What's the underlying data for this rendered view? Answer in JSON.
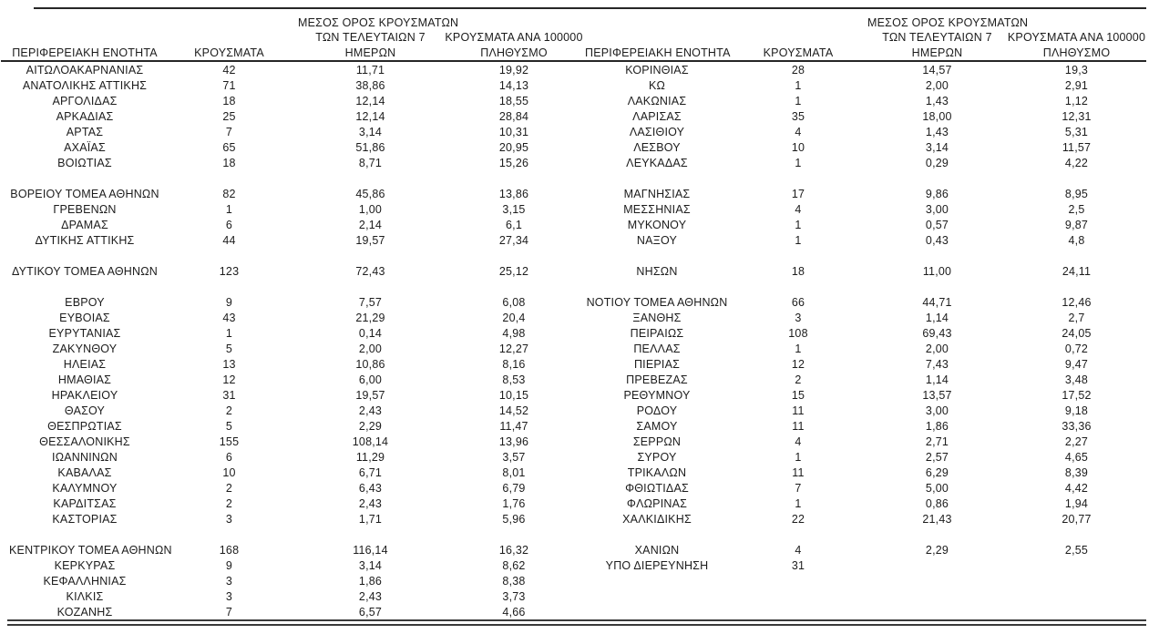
{
  "table": {
    "header_lines": {
      "region": [
        "ΠΕΡΙΦΕΡΕΙΑΚΗ ΕΝΟΤΗΤΑ"
      ],
      "cases": [
        "ΚΡΟΥΣΜΑΤΑ"
      ],
      "avg7": [
        "ΜΕΣΟΣ ΟΡΟΣ ΚΡΟΥΣΜΑΤΩΝ",
        "ΤΩΝ ΤΕΛΕΥΤΑΙΩΝ 7",
        "ΗΜΕΡΩΝ"
      ],
      "per100k": [
        "ΚΡΟΥΣΜΑΤΑ ΑΝΑ 100000",
        "ΠΛΗΘΥΣΜΟ"
      ]
    },
    "left_rows": [
      [
        "ΑΙΤΩΛΟΑΚΑΡΝΑΝΙΑΣ",
        "42",
        "11,71",
        "19,92"
      ],
      [
        "ΑΝΑΤΟΛΙΚΗΣ ΑΤΤΙΚΗΣ",
        "71",
        "38,86",
        "14,13"
      ],
      [
        "ΑΡΓΟΛΙΔΑΣ",
        "18",
        "12,14",
        "18,55"
      ],
      [
        "ΑΡΚΑΔΙΑΣ",
        "25",
        "12,14",
        "28,84"
      ],
      [
        "ΑΡΤΑΣ",
        "7",
        "3,14",
        "10,31"
      ],
      [
        "ΑΧΑΪΑΣ",
        "65",
        "51,86",
        "20,95"
      ],
      [
        "ΒΟΙΩΤΙΑΣ",
        "18",
        "8,71",
        "15,26"
      ],
      [
        "",
        "",
        "",
        ""
      ],
      [
        "ΒΟΡΕΙΟΥ ΤΟΜΕΑ ΑΘΗΝΩΝ",
        "82",
        "45,86",
        "13,86"
      ],
      [
        "ΓΡΕΒΕΝΩΝ",
        "1",
        "1,00",
        "3,15"
      ],
      [
        "ΔΡΑΜΑΣ",
        "6",
        "2,14",
        "6,1"
      ],
      [
        "ΔΥΤΙΚΗΣ ΑΤΤΙΚΗΣ",
        "44",
        "19,57",
        "27,34"
      ],
      [
        "",
        "",
        "",
        ""
      ],
      [
        "ΔΥΤΙΚΟΥ ΤΟΜΕΑ ΑΘΗΝΩΝ",
        "123",
        "72,43",
        "25,12"
      ],
      [
        "",
        "",
        "",
        ""
      ],
      [
        "ΕΒΡΟΥ",
        "9",
        "7,57",
        "6,08"
      ],
      [
        "ΕΥΒΟΙΑΣ",
        "43",
        "21,29",
        "20,4"
      ],
      [
        "ΕΥΡΥΤΑΝΙΑΣ",
        "1",
        "0,14",
        "4,98"
      ],
      [
        "ΖΑΚΥΝΘΟΥ",
        "5",
        "2,00",
        "12,27"
      ],
      [
        "ΗΛΕΙΑΣ",
        "13",
        "10,86",
        "8,16"
      ],
      [
        "ΗΜΑΘΙΑΣ",
        "12",
        "6,00",
        "8,53"
      ],
      [
        "ΗΡΑΚΛΕΙΟΥ",
        "31",
        "19,57",
        "10,15"
      ],
      [
        "ΘΑΣΟΥ",
        "2",
        "2,43",
        "14,52"
      ],
      [
        "ΘΕΣΠΡΩΤΙΑΣ",
        "5",
        "2,29",
        "11,47"
      ],
      [
        "ΘΕΣΣΑΛΟΝΙΚΗΣ",
        "155",
        "108,14",
        "13,96"
      ],
      [
        "ΙΩΑΝΝΙΝΩΝ",
        "6",
        "11,29",
        "3,57"
      ],
      [
        "ΚΑΒΑΛΑΣ",
        "10",
        "6,71",
        "8,01"
      ],
      [
        "ΚΑΛΥΜΝΟΥ",
        "2",
        "6,43",
        "6,79"
      ],
      [
        "ΚΑΡΔΙΤΣΑΣ",
        "2",
        "2,43",
        "1,76"
      ],
      [
        "ΚΑΣΤΟΡΙΑΣ",
        "3",
        "1,71",
        "5,96"
      ],
      [
        "",
        "",
        "",
        ""
      ],
      [
        "ΚΕΝΤΡΙΚΟΥ ΤΟΜΕΑ ΑΘΗΝΩΝ",
        "168",
        "116,14",
        "16,32"
      ],
      [
        "ΚΕΡΚΥΡΑΣ",
        "9",
        "3,14",
        "8,62"
      ],
      [
        "ΚΕΦΑΛΛΗΝΙΑΣ",
        "3",
        "1,86",
        "8,38"
      ],
      [
        "ΚΙΛΚΙΣ",
        "3",
        "2,43",
        "3,73"
      ],
      [
        "ΚΟΖΑΝΗΣ",
        "7",
        "6,57",
        "4,66"
      ]
    ],
    "right_rows": [
      [
        "ΚΟΡΙΝΘΙΑΣ",
        "28",
        "14,57",
        "19,3"
      ],
      [
        "ΚΩ",
        "1",
        "2,00",
        "2,91"
      ],
      [
        "ΛΑΚΩΝΙΑΣ",
        "1",
        "1,43",
        "1,12"
      ],
      [
        "ΛΑΡΙΣΑΣ",
        "35",
        "18,00",
        "12,31"
      ],
      [
        "ΛΑΣΙΘΙΟΥ",
        "4",
        "1,43",
        "5,31"
      ],
      [
        "ΛΕΣΒΟΥ",
        "10",
        "3,14",
        "11,57"
      ],
      [
        "ΛΕΥΚΑΔΑΣ",
        "1",
        "0,29",
        "4,22"
      ],
      [
        "",
        "",
        "",
        ""
      ],
      [
        "ΜΑΓΝΗΣΙΑΣ",
        "17",
        "9,86",
        "8,95"
      ],
      [
        "ΜΕΣΣΗΝΙΑΣ",
        "4",
        "3,00",
        "2,5"
      ],
      [
        "ΜΥΚΟΝΟΥ",
        "1",
        "0,57",
        "9,87"
      ],
      [
        "ΝΑΞΟΥ",
        "1",
        "0,43",
        "4,8"
      ],
      [
        "",
        "",
        "",
        ""
      ],
      [
        "ΝΗΣΩΝ",
        "18",
        "11,00",
        "24,11"
      ],
      [
        "",
        "",
        "",
        ""
      ],
      [
        "ΝΟΤΙΟΥ ΤΟΜΕΑ ΑΘΗΝΩΝ",
        "66",
        "44,71",
        "12,46"
      ],
      [
        "ΞΑΝΘΗΣ",
        "3",
        "1,14",
        "2,7"
      ],
      [
        "ΠΕΙΡΑΙΩΣ",
        "108",
        "69,43",
        "24,05"
      ],
      [
        "ΠΕΛΛΑΣ",
        "1",
        "2,00",
        "0,72"
      ],
      [
        "ΠΙΕΡΙΑΣ",
        "12",
        "7,43",
        "9,47"
      ],
      [
        "ΠΡΕΒΕΖΑΣ",
        "2",
        "1,14",
        "3,48"
      ],
      [
        "ΡΕΘΥΜΝΟΥ",
        "15",
        "13,57",
        "17,52"
      ],
      [
        "ΡΟΔΟΥ",
        "11",
        "3,00",
        "9,18"
      ],
      [
        "ΣΑΜΟΥ",
        "11",
        "1,86",
        "33,36"
      ],
      [
        "ΣΕΡΡΩΝ",
        "4",
        "2,71",
        "2,27"
      ],
      [
        "ΣΥΡΟΥ",
        "1",
        "2,57",
        "4,65"
      ],
      [
        "ΤΡΙΚΑΛΩΝ",
        "11",
        "6,29",
        "8,39"
      ],
      [
        "ΦΘΙΩΤΙΔΑΣ",
        "7",
        "5,00",
        "4,42"
      ],
      [
        "ΦΛΩΡΙΝΑΣ",
        "1",
        "0,86",
        "1,94"
      ],
      [
        "ΧΑΛΚΙΔΙΚΗΣ",
        "22",
        "21,43",
        "20,77"
      ],
      [
        "",
        "",
        "",
        ""
      ],
      [
        "ΧΑΝΙΩΝ",
        "4",
        "2,29",
        "2,55"
      ],
      [
        "ΥΠΟ ΔΙΕΡΕΥΝΗΣΗ",
        "31",
        "",
        ""
      ],
      [
        "",
        "",
        "",
        ""
      ],
      [
        "",
        "",
        "",
        ""
      ],
      [
        "",
        "",
        "",
        ""
      ]
    ]
  }
}
